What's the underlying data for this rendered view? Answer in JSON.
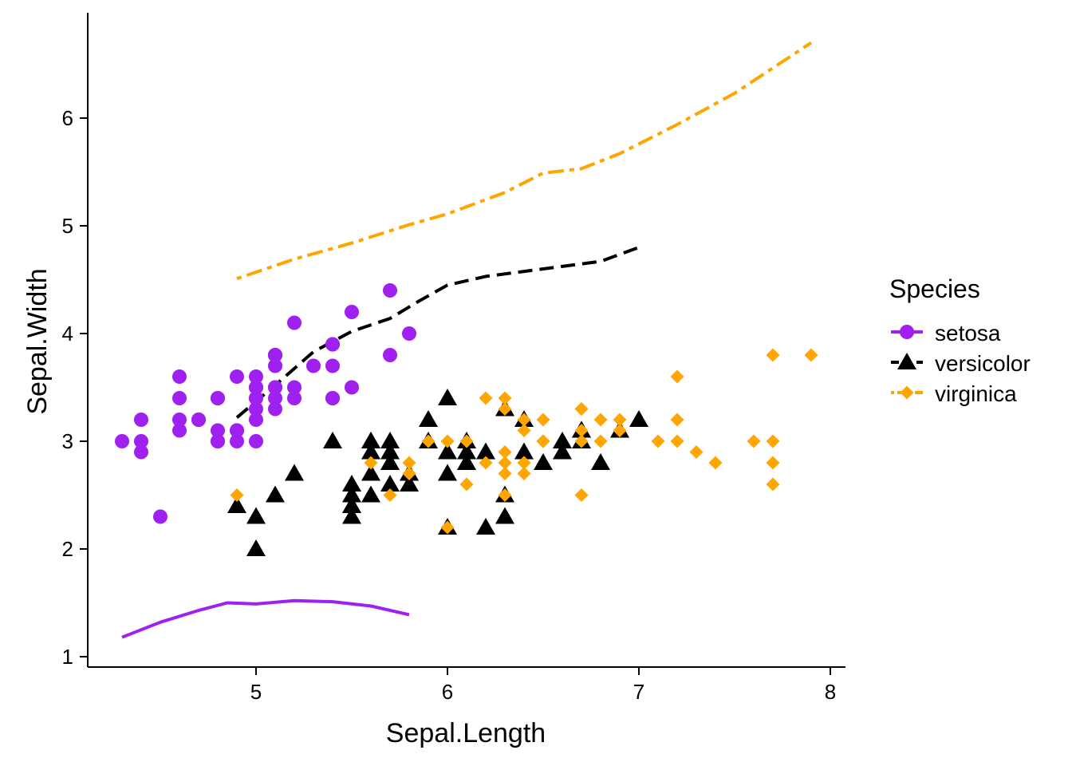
{
  "chart_data": {
    "type": "scatter",
    "title": "",
    "xlabel": "Sepal.Length",
    "ylabel": "Sepal.Width",
    "xlim": [
      4.2,
      8.1
    ],
    "ylim": [
      0.95,
      6.95
    ],
    "xticks": [
      5,
      6,
      7,
      8
    ],
    "yticks": [
      1,
      2,
      3,
      4,
      5,
      6
    ],
    "xtick_labels": [
      "5",
      "6",
      "7",
      "8"
    ],
    "ytick_labels": [
      "1",
      "2",
      "3",
      "4",
      "5",
      "6"
    ],
    "grid": false,
    "legend": {
      "title": "Species",
      "position": "right"
    },
    "series": [
      {
        "name": "setosa",
        "color": "#A020F0",
        "marker": "circle",
        "line_style": "solid",
        "points": [
          [
            5.1,
            3.5
          ],
          [
            4.9,
            3.0
          ],
          [
            4.7,
            3.2
          ],
          [
            4.6,
            3.1
          ],
          [
            5.0,
            3.6
          ],
          [
            5.4,
            3.9
          ],
          [
            4.6,
            3.4
          ],
          [
            5.0,
            3.4
          ],
          [
            4.4,
            2.9
          ],
          [
            4.9,
            3.1
          ],
          [
            5.4,
            3.7
          ],
          [
            4.8,
            3.4
          ],
          [
            4.8,
            3.0
          ],
          [
            4.3,
            3.0
          ],
          [
            5.8,
            4.0
          ],
          [
            5.7,
            4.4
          ],
          [
            5.4,
            3.9
          ],
          [
            5.1,
            3.5
          ],
          [
            5.7,
            3.8
          ],
          [
            5.1,
            3.8
          ],
          [
            5.4,
            3.4
          ],
          [
            5.1,
            3.7
          ],
          [
            4.6,
            3.6
          ],
          [
            5.1,
            3.3
          ],
          [
            4.8,
            3.4
          ],
          [
            5.0,
            3.0
          ],
          [
            5.0,
            3.4
          ],
          [
            5.2,
            3.5
          ],
          [
            5.2,
            3.4
          ],
          [
            4.7,
            3.2
          ],
          [
            4.8,
            3.1
          ],
          [
            5.4,
            3.4
          ],
          [
            5.2,
            4.1
          ],
          [
            5.5,
            4.2
          ],
          [
            4.9,
            3.1
          ],
          [
            5.0,
            3.2
          ],
          [
            5.5,
            3.5
          ],
          [
            4.9,
            3.6
          ],
          [
            4.4,
            3.0
          ],
          [
            5.1,
            3.4
          ],
          [
            5.0,
            3.5
          ],
          [
            4.5,
            2.3
          ],
          [
            4.4,
            3.2
          ],
          [
            5.0,
            3.5
          ],
          [
            5.1,
            3.8
          ],
          [
            4.8,
            3.0
          ],
          [
            5.1,
            3.8
          ],
          [
            4.6,
            3.2
          ],
          [
            5.3,
            3.7
          ],
          [
            5.0,
            3.3
          ]
        ],
        "line": [
          [
            4.3,
            1.18
          ],
          [
            4.5,
            1.32
          ],
          [
            4.7,
            1.43
          ],
          [
            4.85,
            1.5
          ],
          [
            5.0,
            1.49
          ],
          [
            5.2,
            1.52
          ],
          [
            5.4,
            1.51
          ],
          [
            5.6,
            1.47
          ],
          [
            5.8,
            1.39
          ]
        ]
      },
      {
        "name": "versicolor",
        "color": "#000000",
        "marker": "triangle",
        "line_style": "dashed",
        "points": [
          [
            7.0,
            3.2
          ],
          [
            6.4,
            3.2
          ],
          [
            6.9,
            3.1
          ],
          [
            5.5,
            2.3
          ],
          [
            6.5,
            2.8
          ],
          [
            5.7,
            2.8
          ],
          [
            6.3,
            3.3
          ],
          [
            4.9,
            2.4
          ],
          [
            6.6,
            2.9
          ],
          [
            5.2,
            2.7
          ],
          [
            5.0,
            2.0
          ],
          [
            5.9,
            3.0
          ],
          [
            6.0,
            2.2
          ],
          [
            6.1,
            2.9
          ],
          [
            5.6,
            2.9
          ],
          [
            6.7,
            3.1
          ],
          [
            5.6,
            3.0
          ],
          [
            5.8,
            2.7
          ],
          [
            6.2,
            2.2
          ],
          [
            5.6,
            2.5
          ],
          [
            5.9,
            3.2
          ],
          [
            6.1,
            2.8
          ],
          [
            6.3,
            2.5
          ],
          [
            6.1,
            2.8
          ],
          [
            6.4,
            2.9
          ],
          [
            6.6,
            3.0
          ],
          [
            6.8,
            2.8
          ],
          [
            6.7,
            3.0
          ],
          [
            6.0,
            2.9
          ],
          [
            5.7,
            2.6
          ],
          [
            5.5,
            2.4
          ],
          [
            5.5,
            2.4
          ],
          [
            5.8,
            2.7
          ],
          [
            6.0,
            2.7
          ],
          [
            5.4,
            3.0
          ],
          [
            6.0,
            3.4
          ],
          [
            6.7,
            3.1
          ],
          [
            6.3,
            2.3
          ],
          [
            5.6,
            3.0
          ],
          [
            5.5,
            2.5
          ],
          [
            5.5,
            2.6
          ],
          [
            6.1,
            3.0
          ],
          [
            5.8,
            2.6
          ],
          [
            5.0,
            2.3
          ],
          [
            5.6,
            2.7
          ],
          [
            5.7,
            3.0
          ],
          [
            5.7,
            2.9
          ],
          [
            6.2,
            2.9
          ],
          [
            5.1,
            2.5
          ],
          [
            5.7,
            2.8
          ]
        ],
        "line": [
          [
            4.9,
            3.22
          ],
          [
            5.1,
            3.52
          ],
          [
            5.3,
            3.83
          ],
          [
            5.5,
            4.02
          ],
          [
            5.7,
            4.14
          ],
          [
            5.85,
            4.3
          ],
          [
            6.0,
            4.45
          ],
          [
            6.2,
            4.53
          ],
          [
            6.5,
            4.6
          ],
          [
            6.8,
            4.67
          ],
          [
            7.0,
            4.8
          ]
        ]
      },
      {
        "name": "virginica",
        "color": "#FFA500",
        "marker": "diamond",
        "line_style": "dotdash",
        "points": [
          [
            6.3,
            3.3
          ],
          [
            5.8,
            2.7
          ],
          [
            7.1,
            3.0
          ],
          [
            6.3,
            2.9
          ],
          [
            6.5,
            3.0
          ],
          [
            7.6,
            3.0
          ],
          [
            4.9,
            2.5
          ],
          [
            7.3,
            2.9
          ],
          [
            6.7,
            2.5
          ],
          [
            7.2,
            3.6
          ],
          [
            6.5,
            3.2
          ],
          [
            6.4,
            2.7
          ],
          [
            6.8,
            3.0
          ],
          [
            5.7,
            2.5
          ],
          [
            5.8,
            2.8
          ],
          [
            6.4,
            3.2
          ],
          [
            6.5,
            3.0
          ],
          [
            7.7,
            3.8
          ],
          [
            7.7,
            2.6
          ],
          [
            6.0,
            2.2
          ],
          [
            6.9,
            3.2
          ],
          [
            5.6,
            2.8
          ],
          [
            7.7,
            2.8
          ],
          [
            6.3,
            2.7
          ],
          [
            6.7,
            3.3
          ],
          [
            7.2,
            3.2
          ],
          [
            6.2,
            2.8
          ],
          [
            6.1,
            3.0
          ],
          [
            6.4,
            2.8
          ],
          [
            7.2,
            3.0
          ],
          [
            7.4,
            2.8
          ],
          [
            7.9,
            3.8
          ],
          [
            6.4,
            2.8
          ],
          [
            6.3,
            2.8
          ],
          [
            6.1,
            2.6
          ],
          [
            7.7,
            3.0
          ],
          [
            6.3,
            3.4
          ],
          [
            6.4,
            3.1
          ],
          [
            6.0,
            3.0
          ],
          [
            6.9,
            3.1
          ],
          [
            6.7,
            3.1
          ],
          [
            6.9,
            3.1
          ],
          [
            5.8,
            2.7
          ],
          [
            6.8,
            3.2
          ],
          [
            6.7,
            3.3
          ],
          [
            6.7,
            3.0
          ],
          [
            6.3,
            2.5
          ],
          [
            6.5,
            3.0
          ],
          [
            6.2,
            3.4
          ],
          [
            5.9,
            3.0
          ]
        ],
        "line": [
          [
            4.9,
            4.51
          ],
          [
            5.2,
            4.69
          ],
          [
            5.5,
            4.84
          ],
          [
            5.8,
            5.01
          ],
          [
            6.0,
            5.11
          ],
          [
            6.3,
            5.31
          ],
          [
            6.5,
            5.49
          ],
          [
            6.7,
            5.53
          ],
          [
            6.9,
            5.67
          ],
          [
            7.2,
            5.94
          ],
          [
            7.5,
            6.23
          ],
          [
            7.9,
            6.7
          ]
        ]
      }
    ]
  }
}
